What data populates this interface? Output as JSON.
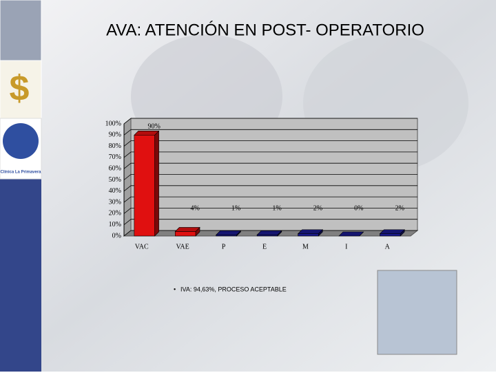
{
  "title": "AVA: ATENCIÓN EN POST- OPERATORIO",
  "logo_text": "Clínica La Primavera",
  "bullet": "IVA: 94,63%, PROCESO ACEPTABLE",
  "chart_data": {
    "type": "bar",
    "categories": [
      "VAC",
      "VAE",
      "P",
      "E",
      "M",
      "I",
      "A"
    ],
    "values": [
      90,
      4,
      1,
      1,
      2,
      0,
      2
    ],
    "value_labels": [
      "90%",
      "4%",
      "1%",
      "1%",
      "2%",
      "0%",
      "2%"
    ],
    "colors": [
      "#e01010",
      "#e01010",
      "#1a1a8c",
      "#1a1a8c",
      "#1a1a8c",
      "#1a1a8c",
      "#1a1a8c"
    ],
    "ylim": [
      0,
      100
    ],
    "yticks": [
      {
        "value": 0,
        "label": "0%"
      },
      {
        "value": 10,
        "label": "10%"
      },
      {
        "value": 20,
        "label": "20%"
      },
      {
        "value": 30,
        "label": "30%"
      },
      {
        "value": 40,
        "label": "40%"
      },
      {
        "value": 50,
        "label": "50%"
      },
      {
        "value": 60,
        "label": "60%"
      },
      {
        "value": 70,
        "label": "70%"
      },
      {
        "value": 80,
        "label": "80%"
      },
      {
        "value": 90,
        "label": "90%"
      },
      {
        "value": 100,
        "label": "100%"
      }
    ],
    "grid": true
  }
}
